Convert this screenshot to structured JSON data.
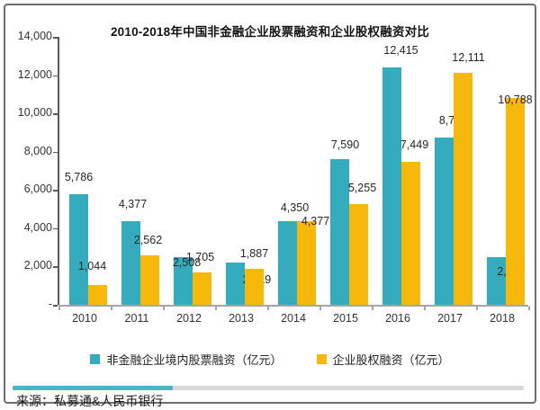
{
  "frame": {
    "source": "来源：私募通&人民币银行"
  },
  "chart_data": {
    "type": "bar",
    "title": "2010-2018年中国非金融企业股票融资和企业股权融资对比",
    "categories": [
      "2010",
      "2011",
      "2012",
      "2013",
      "2014",
      "2015",
      "2016",
      "2017",
      "2018"
    ],
    "series": [
      {
        "name": "非金融企业境内股票融资（亿元）",
        "color": "#35acbe",
        "values": [
          5786,
          4377,
          2508,
          2219,
          4350,
          7590,
          12415,
          8759,
          2511
        ]
      },
      {
        "name": "企业股权融资（亿元）",
        "color": "#f5b80b",
        "values": [
          1044,
          2562,
          1705,
          1887,
          4377,
          5255,
          7449,
          12111,
          10788
        ]
      }
    ],
    "xlabel": "",
    "ylabel": "",
    "unit": "亿元",
    "ylim": [
      0,
      14000
    ],
    "y_ticks": [
      {
        "label": "14,000",
        "value": 14000
      },
      {
        "label": "12,000",
        "value": 12000
      },
      {
        "label": "10,000",
        "value": 10000
      },
      {
        "label": "8,000",
        "value": 8000
      },
      {
        "label": "6,000",
        "value": 6000
      },
      {
        "label": "4,000",
        "value": 4000
      },
      {
        "label": "2,000",
        "value": 2000
      },
      {
        "label": "-",
        "value": 0
      }
    ],
    "grid": false,
    "legend_position": "bottom",
    "data_labels": true
  }
}
